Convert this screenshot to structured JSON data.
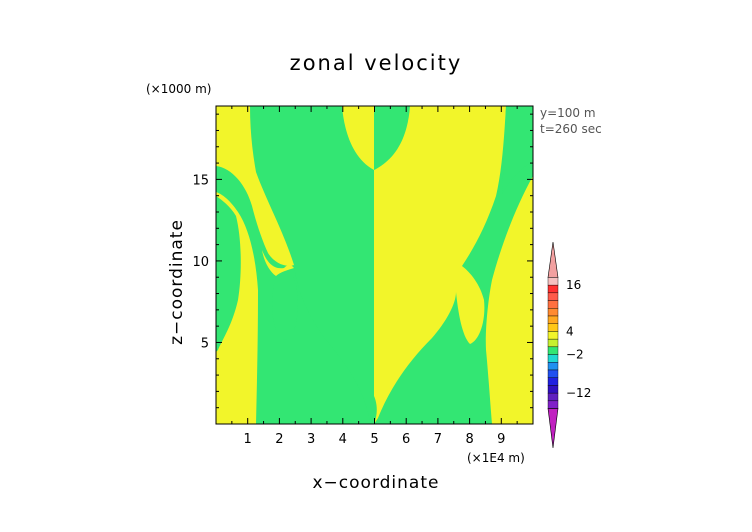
{
  "chart_data": {
    "type": "heatmap",
    "title": "zonal velocity",
    "xlabel": "x−coordinate",
    "ylabel": "z−coordinate",
    "x_scale_note": "(×1E4 m)",
    "y_scale_note": "(×1000 m)",
    "annotation_lines": [
      "y=100 m",
      "t=260 sec"
    ],
    "xlim": [
      0,
      10
    ],
    "ylim": [
      0,
      19.5
    ],
    "xticks": [
      1,
      2,
      3,
      4,
      5,
      6,
      7,
      8,
      9
    ],
    "yticks": [
      5,
      10,
      15
    ],
    "colors": {
      "positive_fill": "#f2f52a",
      "negative_fill": "#33e673"
    },
    "colorbar": {
      "labels": [
        "16",
        "4",
        "−2",
        "−12"
      ],
      "label_values": [
        16,
        4,
        -2,
        -12
      ],
      "range": [
        -20,
        22
      ],
      "bands": [
        {
          "from": 18,
          "to": 22,
          "color": "#f2a0a0"
        },
        {
          "from": 16,
          "to": 18,
          "color": "#f6c0c0"
        },
        {
          "from": 14,
          "to": 16,
          "color": "#ff3030"
        },
        {
          "from": 12,
          "to": 14,
          "color": "#ff5a4a"
        },
        {
          "from": 10,
          "to": 12,
          "color": "#ff7040"
        },
        {
          "from": 8,
          "to": 10,
          "color": "#ff8a30"
        },
        {
          "from": 6,
          "to": 8,
          "color": "#ffa820"
        },
        {
          "from": 4,
          "to": 6,
          "color": "#ffc818"
        },
        {
          "from": 2,
          "to": 4,
          "color": "#f2f52a"
        },
        {
          "from": 0,
          "to": 2,
          "color": "#c8f030"
        },
        {
          "from": -2,
          "to": 0,
          "color": "#33e673"
        },
        {
          "from": -4,
          "to": -2,
          "color": "#20d8d0"
        },
        {
          "from": -6,
          "to": -4,
          "color": "#2090f0"
        },
        {
          "from": -8,
          "to": -6,
          "color": "#2050f0"
        },
        {
          "from": -10,
          "to": -8,
          "color": "#2020e0"
        },
        {
          "from": -12,
          "to": -10,
          "color": "#3010c0"
        },
        {
          "from": -14,
          "to": -12,
          "color": "#6020c0"
        },
        {
          "from": -16,
          "to": -14,
          "color": "#8020c8"
        },
        {
          "from": -20,
          "to": -16,
          "color": "#c020c0"
        }
      ]
    },
    "regions_note": "Two-level field: yellow = positive zonal velocity, green = negative zonal velocity; domain x 0-10 (×1E4 m), z 0-19.5 (×1000 m)."
  }
}
